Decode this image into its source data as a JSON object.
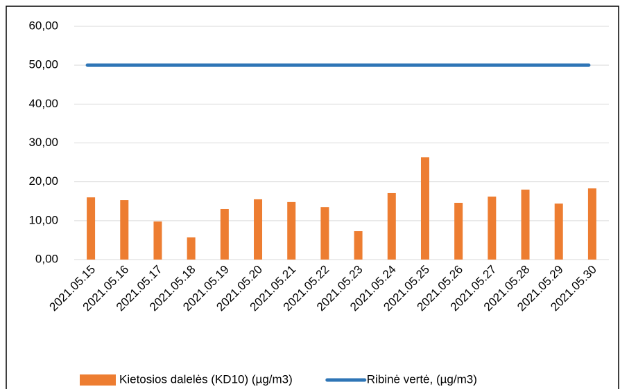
{
  "chart_data": {
    "type": "bar",
    "categories": [
      "2021.05.15",
      "2021.05.16",
      "2021.05.17",
      "2021.05.18",
      "2021.05.19",
      "2021.05.20",
      "2021.05.21",
      "2021.05.22",
      "2021.05.23",
      "2021.05.24",
      "2021.05.25",
      "2021.05.26",
      "2021.05.27",
      "2021.05.28",
      "2021.05.29",
      "2021.05.30"
    ],
    "series": [
      {
        "name": "Kietosios dalelės (KD10) (µg/m3)",
        "type": "bar",
        "color": "#ed7d31",
        "values": [
          16.0,
          15.3,
          9.8,
          5.7,
          13.0,
          15.5,
          14.8,
          13.5,
          7.3,
          17.1,
          26.3,
          14.6,
          16.2,
          18.0,
          14.4,
          18.3
        ]
      },
      {
        "name": "Ribinė vertė, (µg/m3)",
        "type": "line",
        "color": "#2e75b6",
        "values": [
          50,
          50,
          50,
          50,
          50,
          50,
          50,
          50,
          50,
          50,
          50,
          50,
          50,
          50,
          50,
          50
        ]
      }
    ],
    "ylim": [
      0,
      60
    ],
    "yticks": [
      {
        "value": 0,
        "label": "0,00"
      },
      {
        "value": 10,
        "label": "10,00"
      },
      {
        "value": 20,
        "label": "20,00"
      },
      {
        "value": 30,
        "label": "30,00"
      },
      {
        "value": 40,
        "label": "40,00"
      },
      {
        "value": 50,
        "label": "50,00"
      },
      {
        "value": 60,
        "label": "60,00"
      }
    ],
    "grid": true,
    "legend": "bottom"
  }
}
